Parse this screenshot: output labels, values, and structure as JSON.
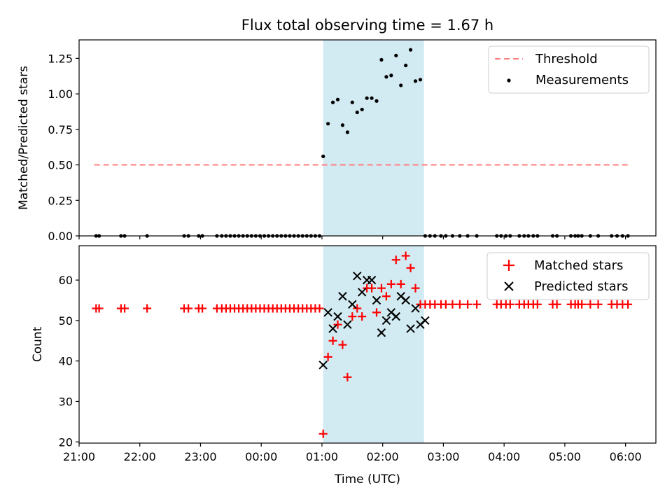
{
  "chart_data": {
    "title": "Flux total observing time = 1.67 h",
    "xlabel": "Time (UTC)",
    "x_unit": "hours relative to 00:00 UTC",
    "xlim": [
      -3.0,
      6.5
    ],
    "xticks": [
      -3,
      -2,
      -1,
      0,
      1,
      2,
      3,
      4,
      5,
      6
    ],
    "xtick_labels": [
      "21:00",
      "22:00",
      "23:00",
      "00:00",
      "01:00",
      "02:00",
      "03:00",
      "04:00",
      "05:00",
      "06:00"
    ],
    "highlight_span": {
      "x0": 1.02,
      "x1": 2.68,
      "color": "#add8e6"
    },
    "charts": [
      {
        "type": "scatter",
        "ylabel": "Matched/Predicted stars",
        "ylim": [
          0,
          1.38
        ],
        "yticks": [
          0,
          0.25,
          0.5,
          0.75,
          1.0,
          1.25
        ],
        "ytick_labels": [
          "0.00",
          "0.25",
          "0.50",
          "0.75",
          "1.00",
          "1.25"
        ],
        "legend_position": "top-right",
        "threshold": {
          "name": "Threshold",
          "value": 0.5,
          "x_start": -2.75,
          "x_end": 6.05,
          "color": "#ff7f7f"
        },
        "series": [
          {
            "name": "Measurements",
            "marker": "dot",
            "color": "#000000",
            "x": [
              -2.72,
              -2.67,
              -2.31,
              -2.25,
              -1.88,
              -1.27,
              -1.2,
              -1.03,
              -0.97,
              -0.73,
              -0.65,
              -0.58,
              -0.51,
              -0.44,
              -0.37,
              -0.3,
              -0.23,
              -0.16,
              -0.09,
              -0.02,
              0.05,
              0.12,
              0.19,
              0.26,
              0.33,
              0.4,
              0.47,
              0.54,
              0.61,
              0.68,
              0.75,
              0.82,
              0.89,
              0.96,
              1.02,
              1.1,
              1.18,
              1.26,
              1.34,
              1.42,
              1.5,
              1.58,
              1.66,
              1.74,
              1.82,
              1.9,
              1.98,
              2.06,
              2.14,
              2.22,
              2.3,
              2.38,
              2.46,
              2.54,
              2.62,
              2.7,
              2.78,
              2.86,
              2.96,
              3.04,
              3.15,
              3.27,
              3.4,
              3.55,
              3.88,
              3.95,
              4.03,
              4.1,
              4.25,
              4.33,
              4.4,
              4.48,
              4.55,
              4.8,
              4.87,
              5.1,
              5.17,
              5.22,
              5.28,
              5.42,
              5.55,
              5.77,
              5.86,
              5.95,
              6.04
            ],
            "y": [
              0,
              0,
              0,
              0,
              0,
              0,
              0,
              0,
              0,
              0,
              0,
              0,
              0,
              0,
              0,
              0,
              0,
              0,
              0,
              0,
              0,
              0,
              0,
              0,
              0,
              0,
              0,
              0,
              0,
              0,
              0,
              0,
              0,
              0,
              0.56,
              0.79,
              0.94,
              0.96,
              0.78,
              0.73,
              0.94,
              0.87,
              0.89,
              0.97,
              0.97,
              0.95,
              1.24,
              1.12,
              1.13,
              1.27,
              1.06,
              1.2,
              1.31,
              1.09,
              1.1,
              0,
              0,
              0,
              0,
              0,
              0,
              0,
              0,
              0,
              0,
              0,
              0,
              0,
              0,
              0,
              0,
              0,
              0,
              0,
              0,
              0,
              0,
              0,
              0,
              0,
              0,
              0,
              0,
              0,
              0
            ]
          }
        ]
      },
      {
        "type": "scatter",
        "ylabel": "Count",
        "ylim": [
          19.7,
          68.5
        ],
        "yticks": [
          20,
          30,
          40,
          50,
          60
        ],
        "ytick_labels": [
          "20",
          "30",
          "40",
          "50",
          "60"
        ],
        "legend_position": "top-right",
        "series": [
          {
            "name": "Matched stars",
            "marker": "plus",
            "color": "#ff0000",
            "x": [
              -2.72,
              -2.67,
              -2.31,
              -2.25,
              -1.88,
              -1.27,
              -1.2,
              -1.03,
              -0.97,
              -0.73,
              -0.65,
              -0.58,
              -0.51,
              -0.44,
              -0.37,
              -0.3,
              -0.23,
              -0.16,
              -0.09,
              -0.02,
              0.05,
              0.12,
              0.19,
              0.26,
              0.33,
              0.4,
              0.47,
              0.54,
              0.61,
              0.68,
              0.75,
              0.82,
              0.89,
              0.96,
              1.02,
              1.1,
              1.18,
              1.26,
              1.34,
              1.42,
              1.5,
              1.58,
              1.66,
              1.74,
              1.82,
              1.9,
              1.98,
              2.06,
              2.14,
              2.22,
              2.3,
              2.38,
              2.46,
              2.54,
              2.62,
              2.7,
              2.78,
              2.86,
              2.96,
              3.04,
              3.15,
              3.27,
              3.4,
              3.55,
              3.88,
              3.95,
              4.03,
              4.1,
              4.25,
              4.33,
              4.4,
              4.48,
              4.55,
              4.8,
              4.87,
              5.1,
              5.17,
              5.22,
              5.28,
              5.42,
              5.55,
              5.77,
              5.86,
              5.95,
              6.04
            ],
            "y": [
              53,
              53,
              53,
              53,
              53,
              53,
              53,
              53,
              53,
              53,
              53,
              53,
              53,
              53,
              53,
              53,
              53,
              53,
              53,
              53,
              53,
              53,
              53,
              53,
              53,
              53,
              53,
              53,
              53,
              53,
              53,
              53,
              53,
              53,
              22,
              41,
              45,
              49,
              44,
              36,
              51,
              53,
              51,
              58,
              58,
              52,
              58,
              56,
              59,
              65,
              59,
              66,
              63,
              58,
              54,
              54,
              54,
              54,
              54,
              54,
              54,
              54,
              54,
              54,
              54,
              54,
              54,
              54,
              54,
              54,
              54,
              54,
              54,
              54,
              54,
              54,
              54,
              54,
              54,
              54,
              54,
              54,
              54,
              54,
              54
            ]
          },
          {
            "name": "Predicted stars",
            "marker": "x",
            "color": "#000000",
            "x": [
              1.02,
              1.1,
              1.18,
              1.26,
              1.34,
              1.42,
              1.5,
              1.58,
              1.66,
              1.74,
              1.82,
              1.9,
              1.98,
              2.06,
              2.14,
              2.22,
              2.3,
              2.38,
              2.46,
              2.54,
              2.62,
              2.7
            ],
            "y": [
              39,
              52,
              48,
              51,
              56,
              49,
              54,
              61,
              57,
              60,
              60,
              55,
              47,
              50,
              52,
              51,
              56,
              55,
              48,
              53,
              49,
              50
            ]
          }
        ]
      }
    ]
  }
}
